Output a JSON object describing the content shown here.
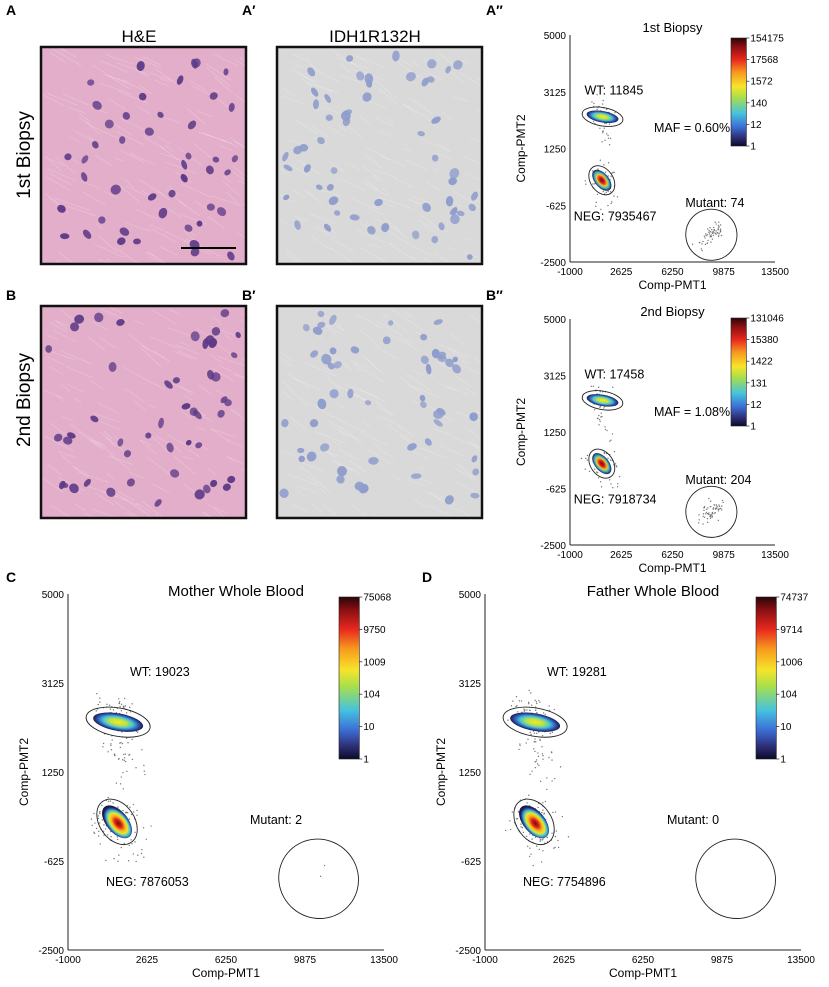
{
  "panel_labels": {
    "A": "A",
    "A1": "A′",
    "A2": "A″",
    "B": "B",
    "B1": "B′",
    "B2": "B″",
    "C": "C",
    "D": "D"
  },
  "column_titles": {
    "he": "H&E",
    "ihc": "IDH1R132H"
  },
  "row_titles": {
    "first": "1st Biopsy",
    "second": "2nd Biopsy"
  },
  "colors": {
    "he_bg": "#e3aec9",
    "he_nuc": "#5e3b88",
    "ihc_bg": "#d9d9d9",
    "ihc_nuc": "#8f9dcc"
  },
  "chart_data": [
    {
      "type": "scatter",
      "panel": "A″",
      "title": "1st Biopsy",
      "xlabel": "Comp-PMT1",
      "ylabel": "Comp-PMT2",
      "xticks": [
        "-1000",
        "2625",
        "6250",
        "9875",
        "13500"
      ],
      "yticks": [
        "5000",
        "3125",
        "1250",
        "-625",
        "-2500"
      ],
      "xlim": [
        -1000,
        13500
      ],
      "ylim": [
        -2500,
        5000
      ],
      "clusters": [
        {
          "name": "WT",
          "label": "WT: 11845",
          "center": [
            1300,
            2300
          ],
          "count": 11845
        },
        {
          "name": "NEG",
          "label": "NEG: 7935467",
          "center": [
            1250,
            200
          ],
          "count": 7935467
        },
        {
          "name": "Mutant",
          "label": "Mutant: 74",
          "center": [
            9000,
            -1600
          ],
          "count": 74
        }
      ],
      "maf": "MAF = 0.60%",
      "colorbar": [
        "154175",
        "17568",
        "1572",
        "140",
        "12",
        "1"
      ]
    },
    {
      "type": "scatter",
      "panel": "B″",
      "title": "2nd Biopsy",
      "xlabel": "Comp-PMT1",
      "ylabel": "Comp-PMT2",
      "xticks": [
        "-1000",
        "2625",
        "6250",
        "9875",
        "13500"
      ],
      "yticks": [
        "5000",
        "3125",
        "1250",
        "-625",
        "-2500"
      ],
      "xlim": [
        -1000,
        13500
      ],
      "ylim": [
        -2500,
        5000
      ],
      "clusters": [
        {
          "name": "WT",
          "label": "WT: 17458",
          "center": [
            1300,
            2300
          ],
          "count": 17458
        },
        {
          "name": "NEG",
          "label": "NEG: 7918734",
          "center": [
            1250,
            200
          ],
          "count": 7918734
        },
        {
          "name": "Mutant",
          "label": "Mutant: 204",
          "center": [
            9000,
            -1400
          ],
          "count": 204
        }
      ],
      "maf": "MAF = 1.08%",
      "colorbar": [
        "131046",
        "15380",
        "1422",
        "131",
        "12",
        "1"
      ]
    },
    {
      "type": "scatter",
      "panel": "C",
      "title": "Mother Whole Blood",
      "xlabel": "Comp-PMT1",
      "ylabel": "Comp-PMT2",
      "xticks": [
        "-1000",
        "2625",
        "6250",
        "9875",
        "13500"
      ],
      "yticks": [
        "5000",
        "3125",
        "1250",
        "-625",
        "-2500"
      ],
      "xlim": [
        -1000,
        13500
      ],
      "ylim": [
        -2500,
        5000
      ],
      "clusters": [
        {
          "name": "WT",
          "label": "WT: 19023",
          "center": [
            1300,
            2300
          ],
          "count": 19023
        },
        {
          "name": "NEG",
          "label": "NEG: 7876053",
          "center": [
            1250,
            200
          ],
          "count": 7876053
        },
        {
          "name": "Mutant",
          "label": "Mutant: 2",
          "center": [
            10500,
            -1000
          ],
          "count": 2
        }
      ],
      "maf": "",
      "colorbar": [
        "75068",
        "9750",
        "1009",
        "104",
        "10",
        "1"
      ]
    },
    {
      "type": "scatter",
      "panel": "D",
      "title": "Father Whole Blood",
      "xlabel": "Comp-PMT1",
      "ylabel": "Comp-PMT2",
      "xticks": [
        "-1000",
        "2625",
        "6250",
        "9875",
        "13500"
      ],
      "yticks": [
        "5000",
        "3125",
        "1250",
        "-625",
        "-2500"
      ],
      "xlim": [
        -1000,
        13500
      ],
      "ylim": [
        -2500,
        5000
      ],
      "clusters": [
        {
          "name": "WT",
          "label": "WT: 19281",
          "center": [
            1300,
            2300
          ],
          "count": 19281
        },
        {
          "name": "NEG",
          "label": "NEG: 7754896",
          "center": [
            1250,
            200
          ],
          "count": 7754896
        },
        {
          "name": "Mutant",
          "label": "Mutant: 0",
          "center": [
            10500,
            -1000
          ],
          "count": 0
        }
      ],
      "maf": "",
      "colorbar": [
        "74737",
        "9714",
        "1006",
        "104",
        "10",
        "1"
      ]
    }
  ]
}
